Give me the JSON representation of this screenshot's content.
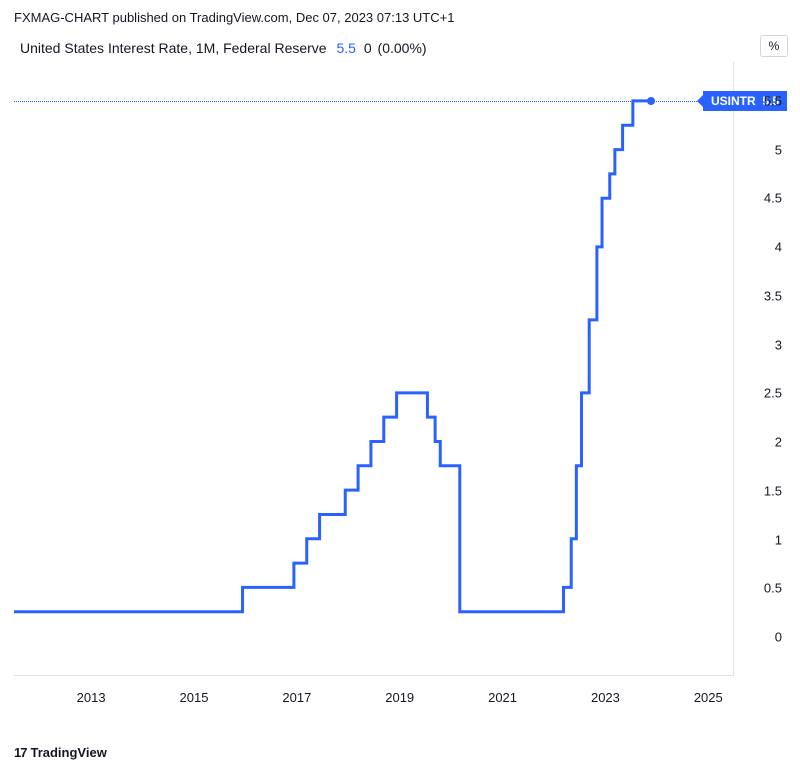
{
  "header": {
    "publisher": "FXMAG-CHART",
    "published_on": "published on TradingView.com,",
    "date": "Dec 07, 2023 07:13 UTC+1"
  },
  "subhead": {
    "instrument": "United States Interest Rate, 1M, Federal Reserve",
    "value": "5.5",
    "change": "0",
    "change_pct": "(0.00%)"
  },
  "unit_box": "%",
  "ticker_badge": {
    "symbol": "USINTR",
    "value": "5.5"
  },
  "footer": {
    "logo_text": "17",
    "brand": "TradingView"
  },
  "chart": {
    "type": "step-line",
    "line_color": "#2962ff",
    "line_width": 2,
    "background_color": "#ffffff",
    "axis_color": "#e0e3eb",
    "text_color": "#131722",
    "dotted_line_color": "#2962ff",
    "x_range": [
      2011.5,
      2025.5
    ],
    "y_range": [
      -0.4,
      5.9
    ],
    "y_ticks": [
      0,
      0.5,
      1,
      1.5,
      2,
      2.5,
      3,
      3.5,
      4,
      4.5,
      5,
      5.5
    ],
    "x_ticks": [
      2013,
      2015,
      2017,
      2019,
      2021,
      2023,
      2025
    ],
    "current_value": 5.5,
    "marker_x": 2023.9,
    "series": [
      [
        2011.5,
        0.25
      ],
      [
        2015.95,
        0.25
      ],
      [
        2015.95,
        0.5
      ],
      [
        2016.95,
        0.5
      ],
      [
        2016.95,
        0.75
      ],
      [
        2017.2,
        0.75
      ],
      [
        2017.2,
        1.0
      ],
      [
        2017.45,
        1.0
      ],
      [
        2017.45,
        1.25
      ],
      [
        2017.95,
        1.25
      ],
      [
        2017.95,
        1.5
      ],
      [
        2018.2,
        1.5
      ],
      [
        2018.2,
        1.75
      ],
      [
        2018.45,
        1.75
      ],
      [
        2018.45,
        2.0
      ],
      [
        2018.7,
        2.0
      ],
      [
        2018.7,
        2.25
      ],
      [
        2018.95,
        2.25
      ],
      [
        2018.95,
        2.5
      ],
      [
        2019.55,
        2.5
      ],
      [
        2019.55,
        2.25
      ],
      [
        2019.7,
        2.25
      ],
      [
        2019.7,
        2.0
      ],
      [
        2019.8,
        2.0
      ],
      [
        2019.8,
        1.75
      ],
      [
        2020.18,
        1.75
      ],
      [
        2020.18,
        0.25
      ],
      [
        2022.2,
        0.25
      ],
      [
        2022.2,
        0.5
      ],
      [
        2022.35,
        0.5
      ],
      [
        2022.35,
        1.0
      ],
      [
        2022.45,
        1.0
      ],
      [
        2022.45,
        1.75
      ],
      [
        2022.55,
        1.75
      ],
      [
        2022.55,
        2.5
      ],
      [
        2022.7,
        2.5
      ],
      [
        2022.7,
        3.25
      ],
      [
        2022.85,
        3.25
      ],
      [
        2022.85,
        4.0
      ],
      [
        2022.95,
        4.0
      ],
      [
        2022.95,
        4.5
      ],
      [
        2023.1,
        4.5
      ],
      [
        2023.1,
        4.75
      ],
      [
        2023.2,
        4.75
      ],
      [
        2023.2,
        5.0
      ],
      [
        2023.35,
        5.0
      ],
      [
        2023.35,
        5.25
      ],
      [
        2023.55,
        5.25
      ],
      [
        2023.55,
        5.5
      ],
      [
        2023.9,
        5.5
      ]
    ]
  }
}
